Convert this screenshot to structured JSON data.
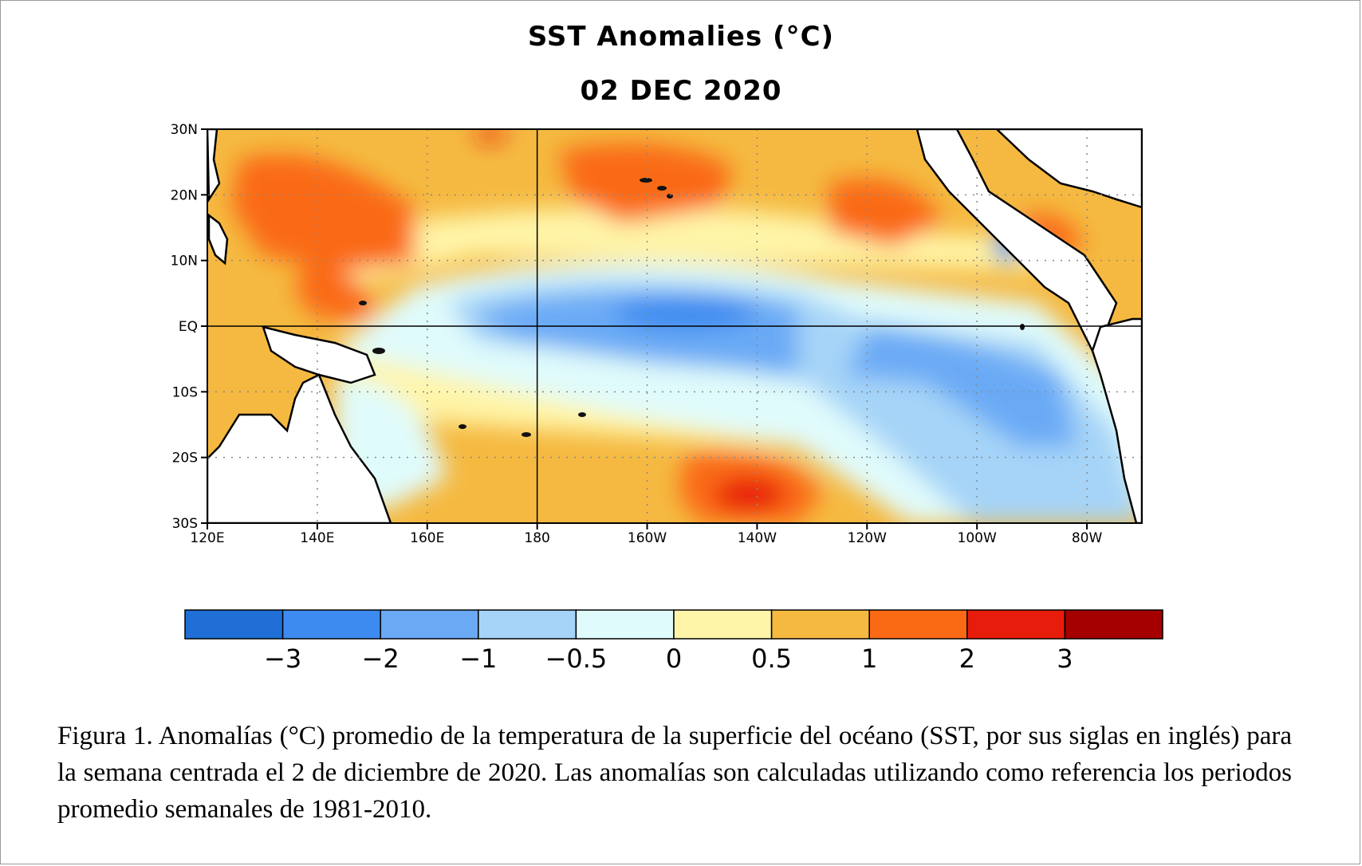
{
  "figure": {
    "title": "SST Anomalies (°C)",
    "date": "02 DEC 2020"
  },
  "map": {
    "lat_range": [
      -30,
      30
    ],
    "lon_range": [
      120,
      290
    ],
    "lat_ticks": [
      {
        "value": 30,
        "label": "30N"
      },
      {
        "value": 20,
        "label": "20N"
      },
      {
        "value": 10,
        "label": "10N"
      },
      {
        "value": 0,
        "label": "EQ"
      },
      {
        "value": -10,
        "label": "10S"
      },
      {
        "value": -20,
        "label": "20S"
      },
      {
        "value": -30,
        "label": "30S"
      }
    ],
    "lon_ticks": [
      {
        "value": 120,
        "label": "120E"
      },
      {
        "value": 140,
        "label": "140E"
      },
      {
        "value": 160,
        "label": "160E"
      },
      {
        "value": 180,
        "label": "180"
      },
      {
        "value": 200,
        "label": "160W"
      },
      {
        "value": 220,
        "label": "140W"
      },
      {
        "value": 240,
        "label": "120W"
      },
      {
        "value": 260,
        "label": "100W"
      },
      {
        "value": 280,
        "label": "80W"
      }
    ],
    "reference_lines": {
      "equator": 0,
      "dateline": 180
    },
    "gridlines": "dotted",
    "anomaly_regions": [
      {
        "lon": [
          170,
          255
        ],
        "lat": [
          -6,
          4
        ],
        "anomaly": -1.0
      },
      {
        "lon": [
          200,
          230
        ],
        "lat": [
          0,
          4
        ],
        "anomaly": -1.5
      },
      {
        "lon": [
          255,
          290
        ],
        "lat": [
          -28,
          -2
        ],
        "anomaly": -0.7
      },
      {
        "lon": [
          260,
          285
        ],
        "lat": [
          -20,
          -6
        ],
        "anomaly": -1.0
      },
      {
        "lon": [
          262,
          268
        ],
        "lat": [
          9,
          15
        ],
        "anomaly": -1.5
      },
      {
        "lon": [
          125,
          160
        ],
        "lat": [
          10,
          25
        ],
        "anomaly": 1.2
      },
      {
        "lon": [
          190,
          210
        ],
        "lat": [
          20,
          30
        ],
        "anomaly": 1.2
      },
      {
        "lon": [
          240,
          260
        ],
        "lat": [
          13,
          22
        ],
        "anomaly": 1.2
      },
      {
        "lon": [
          210,
          232
        ],
        "lat": [
          -30,
          -22
        ],
        "anomaly": 2.0
      },
      {
        "lon": [
          120,
          124
        ],
        "lat": [
          -28,
          -15
        ],
        "anomaly": 1.2
      }
    ]
  },
  "colorbar": {
    "colors": [
      "#1f6fd6",
      "#3d8bf0",
      "#6aaaf5",
      "#a6d4f8",
      "#e0fbfb",
      "#fff5a8",
      "#f5b941",
      "#fa6a14",
      "#e81c0a",
      "#a50000"
    ],
    "labels": [
      "−3",
      "−2",
      "−1",
      "−0.5",
      "0",
      "0.5",
      "1",
      "2",
      "3"
    ]
  },
  "caption": "Figura 1. Anomalías (°C) promedio de la temperatura de la superficie del océano (SST, por sus siglas en inglés) para la semana centrada el 2 de diciembre de 2020. Las anomalías son calculadas utilizando  como referencia los periodos promedio  semanales de 1981-2010."
}
